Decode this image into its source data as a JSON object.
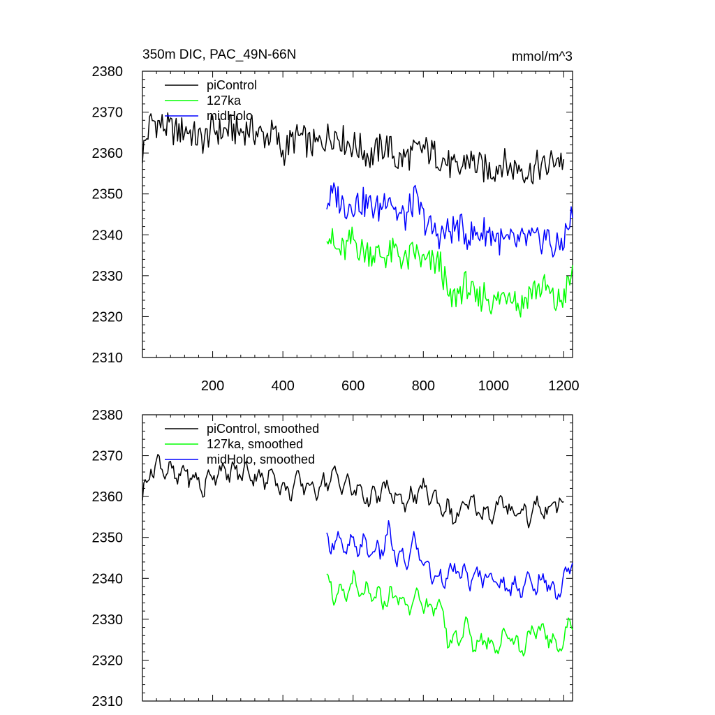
{
  "figure": {
    "title": "350m DIC, PAC_49N-66N",
    "units": "mmol/m^3"
  },
  "chart_data": [
    {
      "type": "line",
      "title": "350m DIC, PAC_49N-66N",
      "units_label": "mmol/m^3",
      "xlim": [
        0,
        1225
      ],
      "ylim": [
        2310,
        2380
      ],
      "xticks": [
        200,
        400,
        600,
        800,
        1000,
        1200
      ],
      "xtick_labels": [
        "200",
        "400",
        "600",
        "800",
        "1000",
        "1200"
      ],
      "yticks": [
        2310,
        2320,
        2330,
        2340,
        2350,
        2360,
        2370,
        2380
      ],
      "ytick_labels": [
        "2310",
        "2320",
        "2330",
        "2340",
        "2350",
        "2360",
        "2370",
        "2380"
      ],
      "legend_position": "top-left",
      "series": [
        {
          "name": "piControl",
          "color": "#000000",
          "x": [
            0,
            25,
            50,
            75,
            100,
            125,
            150,
            175,
            200,
            225,
            250,
            275,
            300,
            325,
            350,
            375,
            400,
            425,
            450,
            475,
            500,
            525,
            550,
            575,
            600,
            625,
            650,
            675,
            700,
            725,
            750,
            775,
            800,
            825,
            850,
            875,
            900,
            925,
            950,
            975,
            1000,
            1025,
            1050,
            1075,
            1100,
            1125,
            1150,
            1175,
            1200
          ],
          "values": [
            2360,
            2368,
            2367,
            2366,
            2365,
            2366,
            2364,
            2363,
            2366,
            2365,
            2366,
            2365,
            2366,
            2365,
            2364,
            2365,
            2360,
            2363,
            2364,
            2362,
            2362,
            2364,
            2365,
            2363,
            2362,
            2361,
            2359,
            2361,
            2362,
            2358,
            2359,
            2360,
            2361,
            2360,
            2359,
            2357,
            2355,
            2359,
            2357,
            2356,
            2356,
            2358,
            2356,
            2357,
            2355,
            2357,
            2356,
            2359,
            2358
          ]
        },
        {
          "name": "127ka",
          "color": "#00ff00",
          "x": [
            525,
            550,
            575,
            600,
            625,
            650,
            675,
            700,
            725,
            750,
            775,
            800,
            825,
            850,
            875,
            900,
            925,
            950,
            975,
            1000,
            1025,
            1050,
            1075,
            1100,
            1125,
            1150,
            1175,
            1200,
            1225
          ],
          "values": [
            2342,
            2336,
            2336,
            2339,
            2336,
            2336,
            2335,
            2335,
            2336,
            2333,
            2336,
            2333,
            2333,
            2333,
            2323,
            2326,
            2328,
            2323,
            2326,
            2323,
            2325,
            2327,
            2322,
            2326,
            2327,
            2327,
            2323,
            2325,
            2330
          ]
        },
        {
          "name": "midHolo",
          "color": "#0000ff",
          "x": [
            525,
            550,
            575,
            600,
            625,
            650,
            675,
            700,
            725,
            750,
            775,
            800,
            825,
            850,
            875,
            900,
            925,
            950,
            975,
            1000,
            1025,
            1050,
            1075,
            1100,
            1125,
            1150,
            1175,
            1200,
            1225
          ],
          "values": [
            2348,
            2350,
            2347,
            2348,
            2348,
            2347,
            2346,
            2351,
            2345,
            2344,
            2349,
            2344,
            2341,
            2340,
            2341,
            2342,
            2340,
            2340,
            2341,
            2340,
            2338,
            2338,
            2338,
            2339,
            2338,
            2340,
            2336,
            2339,
            2345
          ]
        }
      ]
    },
    {
      "type": "line",
      "xlim": [
        0,
        1225
      ],
      "ylim": [
        2310,
        2380
      ],
      "xticks": [
        200,
        400,
        600,
        800,
        1000,
        1200
      ],
      "yticks": [
        2310,
        2320,
        2330,
        2340,
        2350,
        2360,
        2370,
        2380
      ],
      "ytick_labels": [
        "2310",
        "2320",
        "2330",
        "2340",
        "2350",
        "2360",
        "2370",
        "2380"
      ],
      "legend_position": "top-left",
      "series": [
        {
          "name": "piControl, smoothed",
          "color": "#000000",
          "x": [
            0,
            25,
            50,
            75,
            100,
            125,
            150,
            175,
            200,
            225,
            250,
            275,
            300,
            325,
            350,
            375,
            400,
            425,
            450,
            475,
            500,
            525,
            550,
            575,
            600,
            625,
            650,
            675,
            700,
            725,
            750,
            775,
            800,
            825,
            850,
            875,
            900,
            925,
            950,
            975,
            1000,
            1025,
            1050,
            1075,
            1100,
            1125,
            1150,
            1175,
            1200
          ],
          "values": [
            2360,
            2367,
            2368,
            2366,
            2365,
            2366,
            2364,
            2362,
            2366,
            2366,
            2366,
            2366,
            2366,
            2365,
            2364,
            2366,
            2361,
            2362,
            2364,
            2362,
            2362,
            2364,
            2365,
            2363,
            2362,
            2361,
            2359,
            2361,
            2362,
            2359,
            2359,
            2360,
            2362,
            2360,
            2358,
            2356,
            2355,
            2359,
            2357,
            2356,
            2356,
            2359,
            2356,
            2357,
            2355,
            2358,
            2356,
            2359,
            2357
          ]
        },
        {
          "name": "127ka, smoothed",
          "color": "#00ff00",
          "x": [
            525,
            550,
            575,
            600,
            625,
            650,
            675,
            700,
            725,
            750,
            775,
            800,
            825,
            850,
            875,
            900,
            925,
            950,
            975,
            1000,
            1025,
            1050,
            1075,
            1100,
            1125,
            1150,
            1175,
            1200,
            1225
          ],
          "values": [
            2341,
            2335,
            2336,
            2339,
            2336,
            2336,
            2335,
            2335,
            2336,
            2333,
            2336,
            2333,
            2333,
            2333,
            2324,
            2326,
            2328,
            2323,
            2326,
            2323,
            2325,
            2327,
            2322,
            2326,
            2327,
            2327,
            2323,
            2325,
            2330
          ]
        },
        {
          "name": "midHolo, smoothed",
          "color": "#0000ff",
          "x": [
            525,
            550,
            575,
            600,
            625,
            650,
            675,
            700,
            725,
            750,
            775,
            800,
            825,
            850,
            875,
            900,
            925,
            950,
            975,
            1000,
            1025,
            1050,
            1075,
            1100,
            1125,
            1150,
            1175,
            1200,
            1225
          ],
          "values": [
            2348,
            2350,
            2347,
            2348,
            2348,
            2347,
            2346,
            2351,
            2345,
            2344,
            2349,
            2344,
            2341,
            2340,
            2341,
            2342,
            2340,
            2340,
            2341,
            2340,
            2338,
            2338,
            2338,
            2339,
            2338,
            2340,
            2336,
            2339,
            2345
          ]
        }
      ]
    }
  ]
}
